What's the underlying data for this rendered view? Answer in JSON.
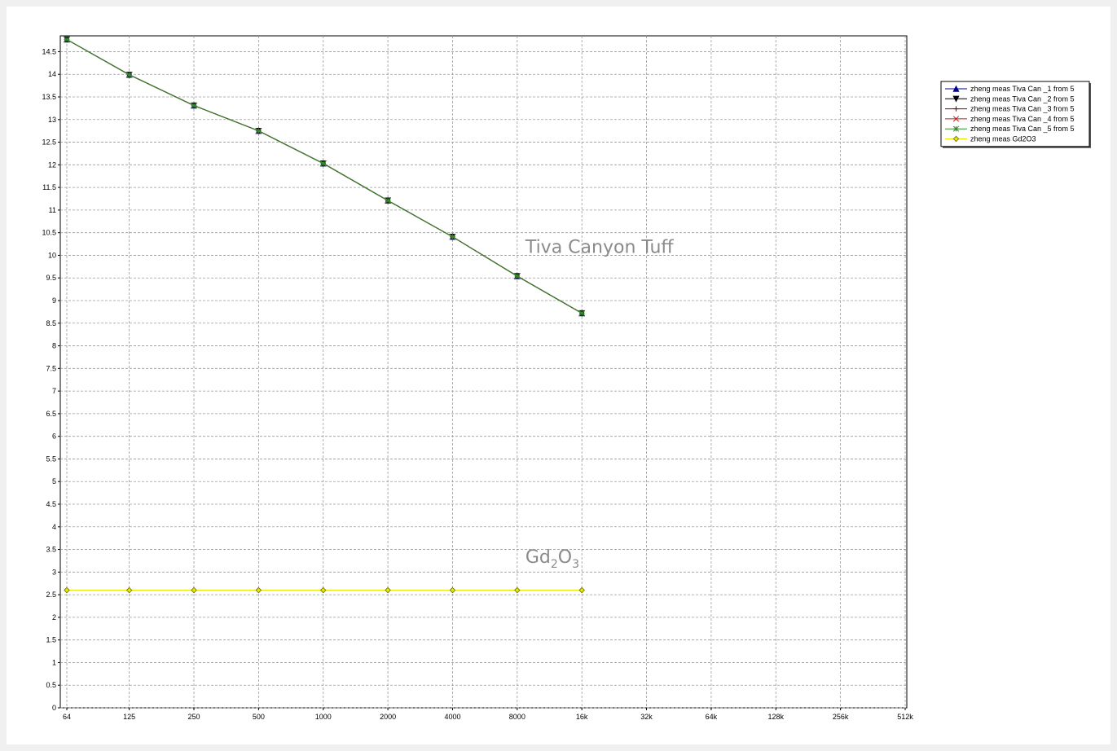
{
  "chart_data": {
    "type": "line",
    "x_scale": "log2",
    "x_ticks": [
      64,
      125,
      250,
      500,
      1000,
      2000,
      4000,
      8000,
      16000,
      32000,
      64000,
      128000,
      256000,
      512000
    ],
    "x_tick_labels": [
      "64",
      "125",
      "250",
      "500",
      "1000",
      "2000",
      "4000",
      "8000",
      "16k",
      "32k",
      "64k",
      "128k",
      "256k",
      "512k"
    ],
    "ylim": [
      0,
      14.5
    ],
    "y_ticks": [
      0,
      0.5,
      1,
      1.5,
      2,
      2.5,
      3,
      3.5,
      4,
      4.5,
      5,
      5.5,
      6,
      6.5,
      7,
      7.5,
      8,
      8.5,
      9,
      9.5,
      10,
      10.5,
      11,
      11.5,
      12,
      12.5,
      13,
      13.5,
      14,
      14.5
    ],
    "grid": true,
    "legend_position": "right",
    "series": [
      {
        "name": "zheng meas Tiva Can _1 from 5",
        "color": "#00008b",
        "marker": "triangle-up",
        "x": [
          64,
          125,
          250,
          500,
          1000,
          2000,
          4000,
          8000,
          16000
        ],
        "y": [
          14.77,
          13.99,
          13.31,
          12.75,
          12.03,
          11.21,
          10.41,
          9.54,
          8.72
        ]
      },
      {
        "name": "zheng meas Tiva Can _2 from 5",
        "color": "#000000",
        "marker": "triangle-down",
        "x": [
          64,
          125,
          250,
          500,
          1000,
          2000,
          4000,
          8000,
          16000
        ],
        "y": [
          14.77,
          13.99,
          13.31,
          12.75,
          12.03,
          11.21,
          10.41,
          9.54,
          8.72
        ]
      },
      {
        "name": "zheng meas Tiva Can _3 from 5",
        "color": "#8b0000",
        "marker": "plus",
        "x": [
          64,
          125,
          250,
          500,
          1000,
          2000,
          4000,
          8000,
          16000
        ],
        "y": [
          14.77,
          13.99,
          13.31,
          12.75,
          12.03,
          11.21,
          10.41,
          9.54,
          8.72
        ]
      },
      {
        "name": "zheng meas Tiva Can _4 from 5",
        "color": "#b22222",
        "marker": "x",
        "x": [
          64,
          125,
          250,
          500,
          1000,
          2000,
          4000,
          8000,
          16000
        ],
        "y": [
          14.77,
          13.99,
          13.31,
          12.75,
          12.03,
          11.21,
          10.41,
          9.54,
          8.72
        ]
      },
      {
        "name": "zheng meas Tiva Can _5 from 5",
        "color": "#2e8b2e",
        "marker": "asterisk",
        "x": [
          64,
          125,
          250,
          500,
          1000,
          2000,
          4000,
          8000,
          16000
        ],
        "y": [
          14.77,
          13.99,
          13.31,
          12.75,
          12.03,
          11.21,
          10.41,
          9.54,
          8.72
        ]
      },
      {
        "name": "zheng meas Gd2O3",
        "color": "#e8e800",
        "marker": "diamond",
        "x": [
          64,
          125,
          250,
          500,
          1000,
          2000,
          4000,
          8000,
          16000
        ],
        "y": [
          2.6,
          2.6,
          2.6,
          2.6,
          2.6,
          2.6,
          2.6,
          2.6,
          2.6
        ]
      }
    ],
    "annotations": [
      {
        "text": "Tiva Canyon Tuff",
        "x": 8000,
        "y": 10.05
      },
      {
        "text_main": "Gd",
        "sub1": "2",
        "text_mid": "O",
        "sub2": "3",
        "x": 8000,
        "y": 3.2
      }
    ]
  }
}
